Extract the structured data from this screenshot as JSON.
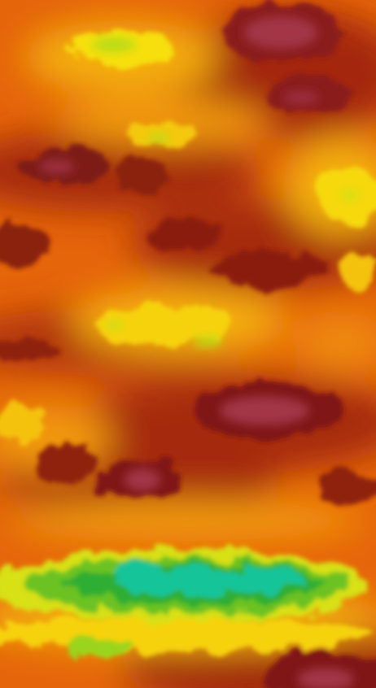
{
  "image": {
    "kind": "false-color noise heatmap",
    "palette": {
      "maroon": "#7a1424",
      "crimson": "#a33446",
      "dark_red": "#8f1a10",
      "red_orange": "#c2410a",
      "orange": "#ea6f06",
      "amber": "#f5a205",
      "yellow": "#f7dc0a",
      "yellow_green": "#b8dc18",
      "green": "#3bb52c",
      "teal": "#12c79a"
    }
  }
}
